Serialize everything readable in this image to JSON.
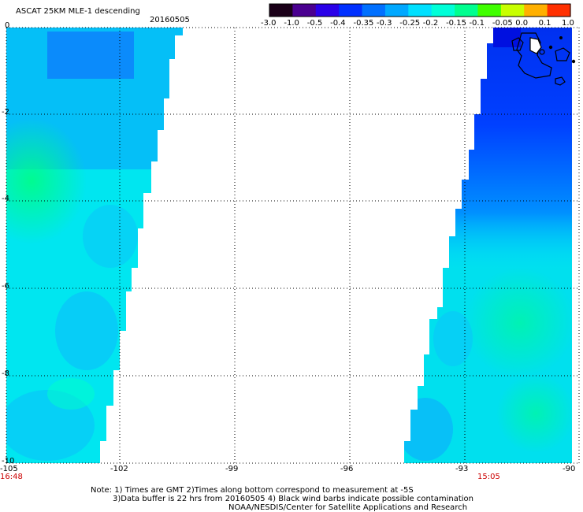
{
  "header": {
    "title": "ASCAT 25KM MLE-1 descending",
    "date": "20160505"
  },
  "colorbar": {
    "labels": [
      "-3.0",
      "-1.0",
      "-0.5",
      "-0.4",
      "-0.35",
      "-0.3",
      "-0.25",
      "-0.2",
      "-0.15",
      "-0.1",
      "-0.05",
      "0.0",
      "0.1",
      "1.0"
    ],
    "colors": [
      "#1a0018",
      "#4a0090",
      "#2a00e8",
      "#0030ff",
      "#0070ff",
      "#00a8ff",
      "#00e0ff",
      "#00ffd8",
      "#00ff90",
      "#40ff00",
      "#c8ff00",
      "#ffb000",
      "#ff3000"
    ]
  },
  "map": {
    "y_labels": [
      "0",
      "-2",
      "-4",
      "-6",
      "-8",
      "-10"
    ],
    "x_labels": [
      "-105",
      "-102",
      "-99",
      "-96",
      "-93",
      "-90"
    ],
    "start_time": "16:48",
    "end_time": "15:05"
  },
  "notes": {
    "line1": "Note: 1) Times are GMT 2)Times along bottom correspond to measurement at -5S",
    "line2": "3)Data buffer is 22 hrs from 20160505 4) Black wind barbs indicate possible contamination",
    "line3": "NOAA/NESDIS/Center for Satellite Applications and Research"
  }
}
